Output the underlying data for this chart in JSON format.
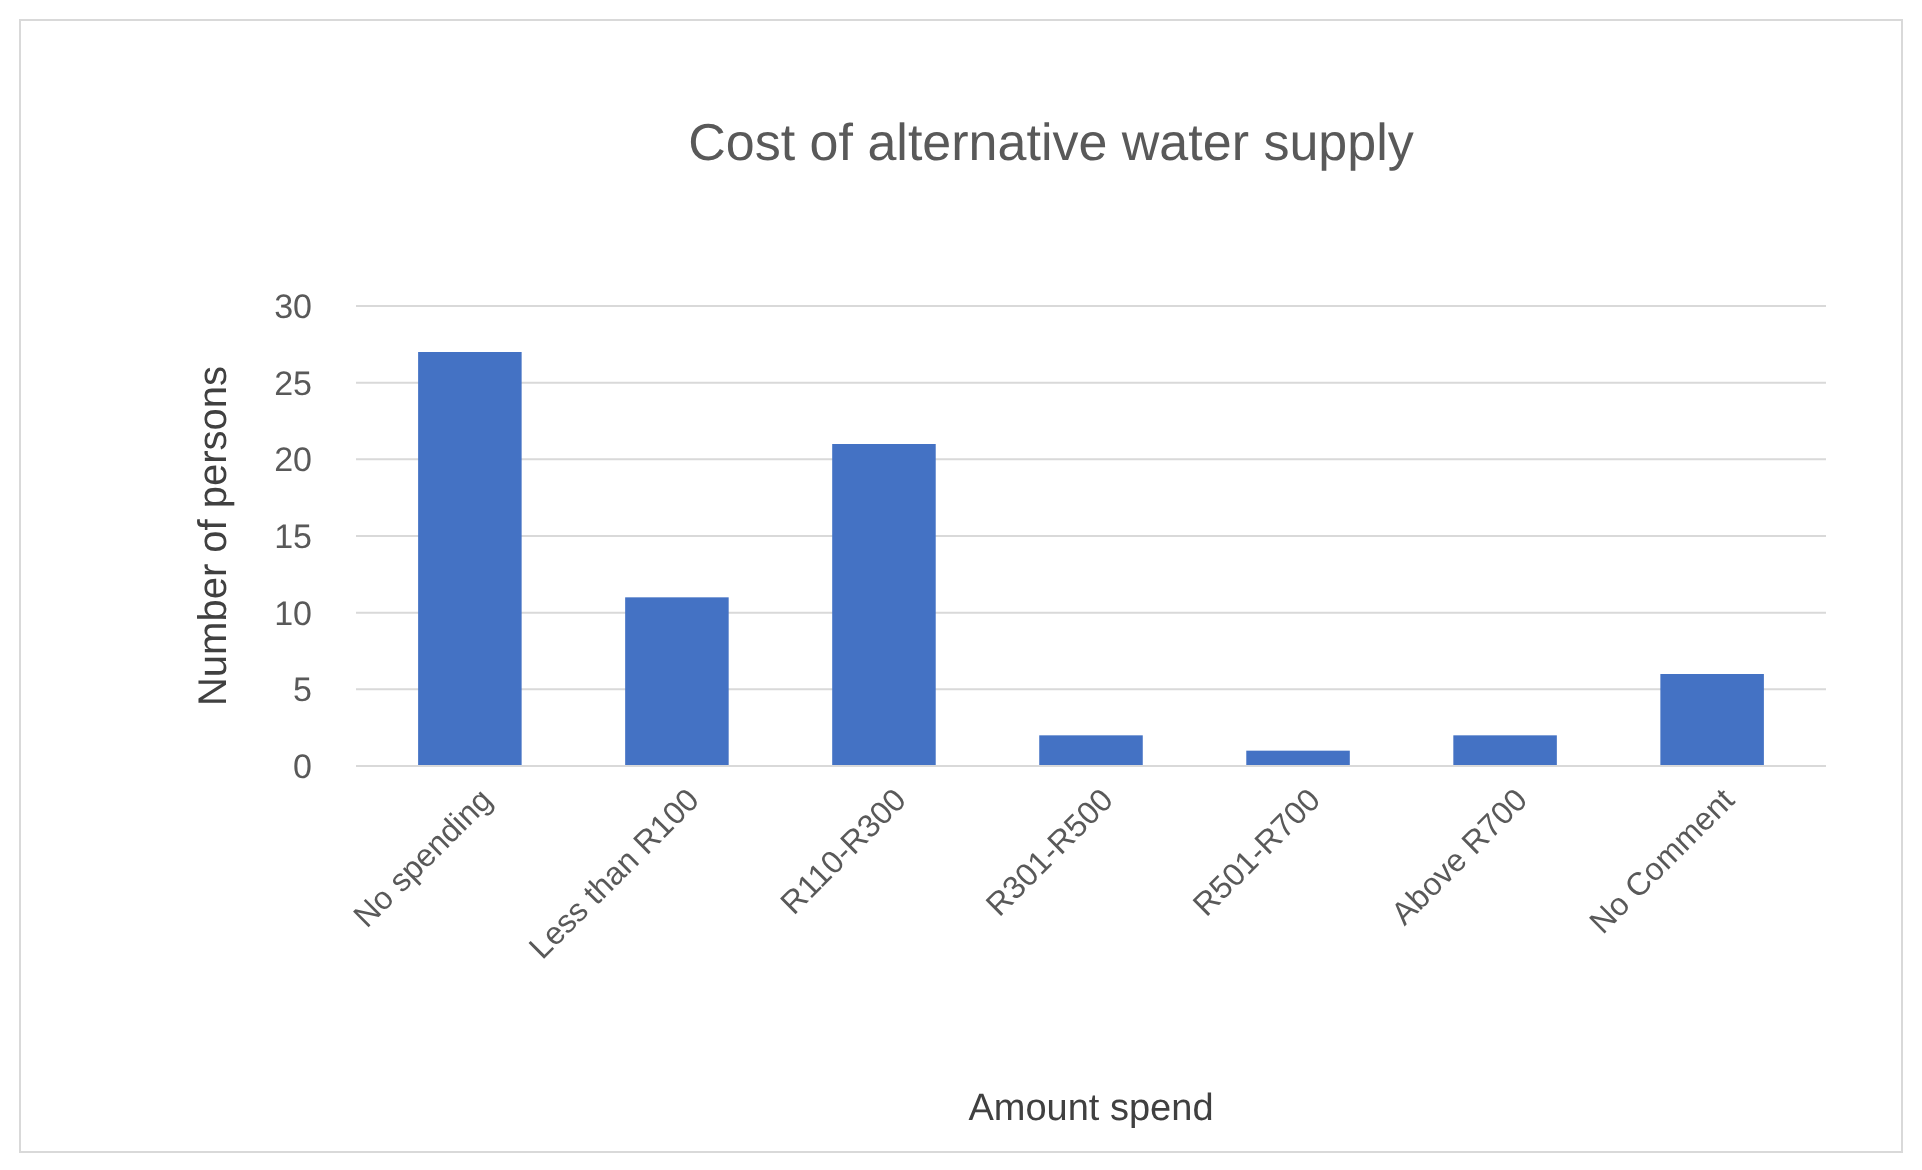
{
  "chart_data": {
    "type": "bar",
    "title": "Cost of alternative water supply",
    "xlabel": "Amount spend",
    "ylabel": "Number of persons",
    "categories": [
      "No spending",
      "Less than R100",
      "R110-R300",
      "R301-R500",
      "R501-R700",
      "Above R700",
      "No Comment"
    ],
    "values": [
      27,
      11,
      21,
      2,
      1,
      2,
      6
    ],
    "color": "#4472c4",
    "ylim": [
      0,
      30
    ],
    "yticks": [
      0,
      5,
      10,
      15,
      20,
      25,
      30
    ],
    "grid": "y"
  }
}
